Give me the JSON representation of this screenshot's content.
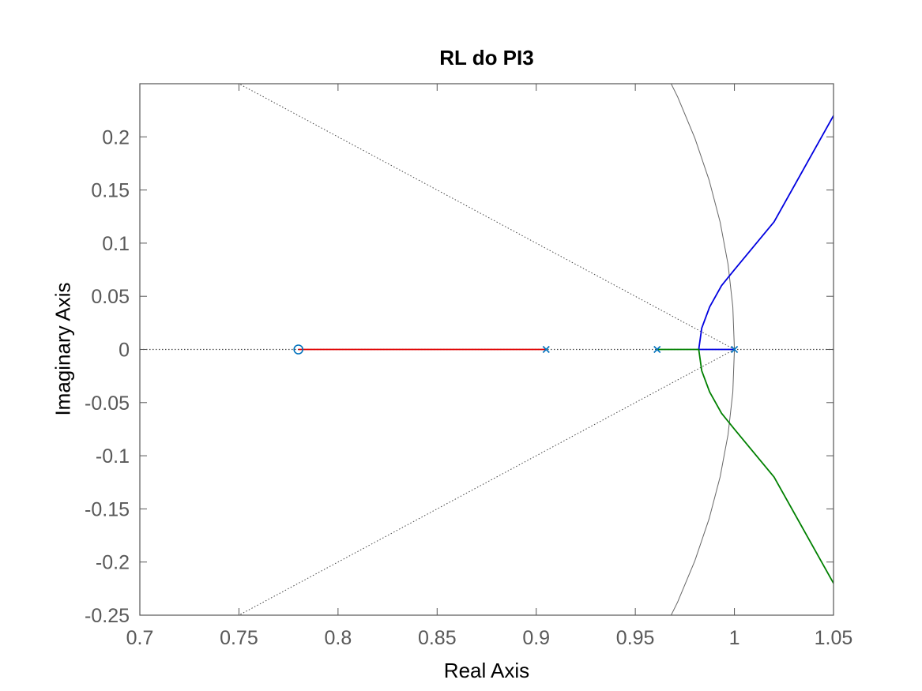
{
  "chart_data": {
    "type": "line",
    "title": "RL do PI3",
    "xlabel": "Real Axis",
    "ylabel": "Imaginary Axis",
    "xlim": [
      0.7,
      1.05
    ],
    "ylim": [
      -0.25,
      0.25
    ],
    "xticks": [
      0.7,
      0.75,
      0.8,
      0.85,
      0.9,
      0.95,
      1,
      1.05
    ],
    "xtick_labels": [
      "0.7",
      "0.75",
      "0.8",
      "0.85",
      "0.9",
      "0.95",
      "1",
      "1.05"
    ],
    "yticks": [
      -0.25,
      -0.2,
      -0.15,
      -0.1,
      -0.05,
      0,
      0.05,
      0.1,
      0.15,
      0.2
    ],
    "ytick_labels": [
      "-0.25",
      "-0.2",
      "-0.15",
      "-0.1",
      "-0.05",
      "0",
      "0.05",
      "0.1",
      "0.15",
      "0.2"
    ],
    "grid": false,
    "zeros": [
      {
        "x": 0.78,
        "y": 0
      }
    ],
    "poles": [
      {
        "x": 0.905,
        "y": 0
      },
      {
        "x": 0.961,
        "y": 0
      },
      {
        "x": 1.0,
        "y": 0
      }
    ],
    "branches": [
      {
        "color": "#e00000",
        "points": [
          [
            0.905,
            0
          ],
          [
            0.78,
            0
          ]
        ]
      },
      {
        "color": "#0000e0",
        "points": [
          [
            1.0,
            0
          ],
          [
            0.982,
            0
          ],
          [
            0.9835,
            0.02
          ],
          [
            0.9875,
            0.04
          ],
          [
            0.9935,
            0.06
          ],
          [
            1.0,
            0.075
          ],
          [
            1.02,
            0.12
          ],
          [
            1.035,
            0.17
          ],
          [
            1.05,
            0.22
          ]
        ]
      },
      {
        "color": "#008000",
        "points": [
          [
            0.961,
            0
          ],
          [
            0.982,
            0
          ],
          [
            0.9835,
            -0.02
          ],
          [
            0.9875,
            -0.04
          ],
          [
            0.9935,
            -0.06
          ],
          [
            1.0,
            -0.075
          ],
          [
            1.02,
            -0.12
          ],
          [
            1.035,
            -0.17
          ],
          [
            1.05,
            -0.22
          ]
        ]
      }
    ],
    "colors": {
      "axis": "#555555",
      "tick_label": "#595959",
      "marker": "#0072bd",
      "guide": "#444444",
      "unit_circle": "#666666"
    }
  }
}
